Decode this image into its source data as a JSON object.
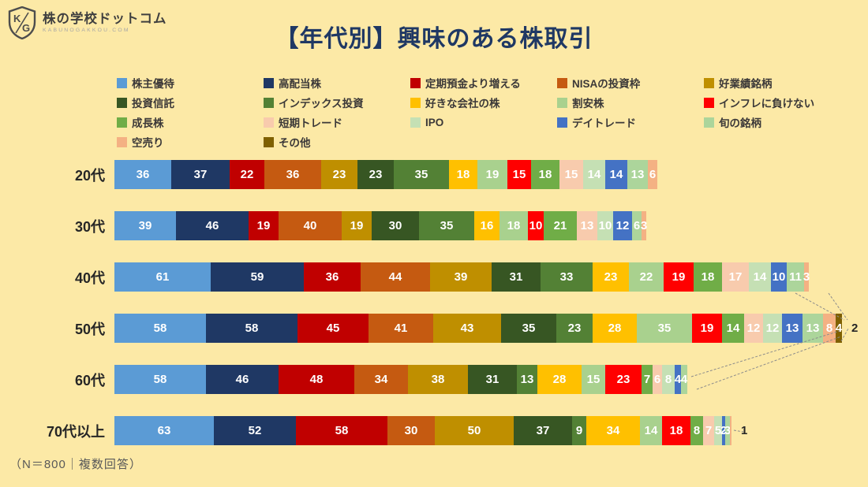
{
  "brand": {
    "name": "株の学校ドットコム",
    "domain": "KABUNOGAKKOU.COM",
    "logo_text_k": "K",
    "logo_text_g": "G"
  },
  "title": "【年代別】興味のある株取引",
  "footnote": "（N＝800｜複数回答）",
  "colors": {
    "background": "#FCE9A6",
    "title": "#1F3864",
    "segment_label": "#FFFFFF",
    "legend_text": "#3B3838",
    "axis_text": "#262626",
    "leader_line": "#8C8C8C"
  },
  "chart_data": {
    "type": "bar",
    "stacked": true,
    "orientation": "horizontal",
    "grid": false,
    "legend_position": "top",
    "title": "【年代別】興味のある株取引",
    "note": "（N＝800｜複数回答）",
    "value_unit": "respondents (N=800, multiple answers)",
    "xlim": [
      0,
      480
    ],
    "categories": [
      "20代",
      "30代",
      "40代",
      "50代",
      "60代",
      "70代以上"
    ],
    "series": [
      {
        "name": "株主優待",
        "color": "#5B9BD5",
        "values": [
          36,
          39,
          61,
          58,
          58,
          63
        ]
      },
      {
        "name": "高配当株",
        "color": "#1F3864",
        "values": [
          37,
          46,
          59,
          58,
          46,
          52
        ]
      },
      {
        "name": "定期預金より増える",
        "color": "#C00000",
        "values": [
          22,
          19,
          36,
          45,
          48,
          58
        ]
      },
      {
        "name": "NISAの投資枠",
        "color": "#C55A11",
        "values": [
          36,
          40,
          44,
          41,
          34,
          30
        ]
      },
      {
        "name": "好業績銘柄",
        "color": "#BF8F00",
        "values": [
          23,
          19,
          39,
          43,
          38,
          50
        ]
      },
      {
        "name": "投資信託",
        "color": "#375623",
        "values": [
          23,
          30,
          31,
          35,
          31,
          37
        ]
      },
      {
        "name": "インデックス投資",
        "color": "#538135",
        "values": [
          35,
          35,
          33,
          23,
          13,
          9
        ]
      },
      {
        "name": "好きな会社の株",
        "color": "#FFC000",
        "values": [
          18,
          16,
          23,
          28,
          28,
          34
        ]
      },
      {
        "name": "割安株",
        "color": "#A9D18E",
        "values": [
          19,
          18,
          22,
          35,
          15,
          14
        ]
      },
      {
        "name": "インフレに負けない",
        "color": "#FF0000",
        "values": [
          15,
          10,
          19,
          19,
          23,
          18
        ]
      },
      {
        "name": "成長株",
        "color": "#70AD47",
        "values": [
          18,
          21,
          18,
          14,
          7,
          8
        ]
      },
      {
        "name": "短期トレード",
        "color": "#F8CBAD",
        "values": [
          15,
          13,
          17,
          12,
          6,
          7
        ]
      },
      {
        "name": "IPO",
        "color": "#C5E0B4",
        "values": [
          14,
          10,
          14,
          12,
          8,
          5
        ]
      },
      {
        "name": "デイトレード",
        "color": "#4472C4",
        "values": [
          14,
          12,
          10,
          13,
          4,
          2
        ]
      },
      {
        "name": "旬の銘柄",
        "color": "#ACD59B",
        "values": [
          13,
          6,
          11,
          13,
          4,
          3
        ]
      },
      {
        "name": "空売り",
        "color": "#F4B183",
        "values": [
          6,
          3,
          3,
          8,
          0,
          1
        ]
      },
      {
        "name": "その他",
        "color": "#7F6000",
        "values": [
          0,
          0,
          0,
          4,
          0,
          0
        ]
      }
    ],
    "outside_labels": [
      {
        "category": "50代",
        "text": "2"
      },
      {
        "category": "70代以上",
        "text": "1"
      }
    ]
  }
}
